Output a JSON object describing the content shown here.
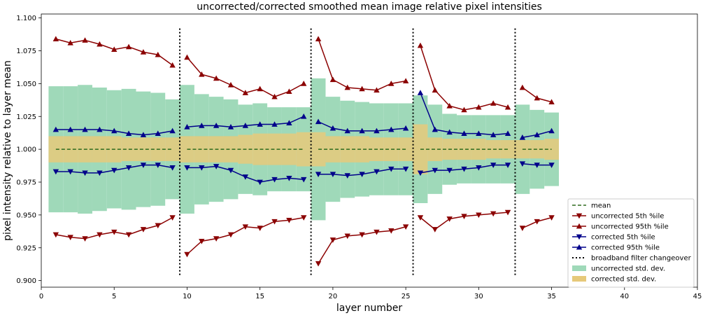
{
  "chart_data": {
    "type": "line",
    "title": "uncorrected/corrected smoothed mean image relative pixel intensities",
    "xlabel": "layer number",
    "ylabel": "pixel intensity relative to layer mean",
    "xlim": [
      0,
      45
    ],
    "ylim": [
      0.895,
      1.103
    ],
    "xticks": [
      0,
      5,
      10,
      15,
      20,
      25,
      30,
      35,
      40,
      45
    ],
    "yticks": [
      0.9,
      0.925,
      0.95,
      0.975,
      1.0,
      1.025,
      1.05,
      1.075,
      1.1
    ],
    "ytick_labels": [
      "0.900",
      "0.925",
      "0.950",
      "0.975",
      "1.000",
      "1.025",
      "1.050",
      "1.075",
      "1.100"
    ],
    "grid": false,
    "legend_position": "bottom-right",
    "x": [
      1,
      2,
      3,
      4,
      5,
      6,
      7,
      8,
      9,
      10,
      11,
      12,
      13,
      14,
      15,
      16,
      17,
      18,
      19,
      20,
      21,
      22,
      23,
      24,
      25,
      26,
      27,
      28,
      29,
      30,
      31,
      32,
      33,
      34,
      35
    ],
    "segment_breaks": [
      9,
      18,
      25,
      32
    ],
    "changeover_lines": [
      9.5,
      18.5,
      25.5,
      32.5
    ],
    "series": [
      {
        "name": "mean",
        "color": "#2e6b1e",
        "style": "dashed",
        "values": [
          1,
          1,
          1,
          1,
          1,
          1,
          1,
          1,
          1,
          1,
          1,
          1,
          1,
          1,
          1,
          1,
          1,
          1,
          1,
          1,
          1,
          1,
          1,
          1,
          1,
          1,
          1,
          1,
          1,
          1,
          1,
          1,
          1,
          1,
          1
        ]
      },
      {
        "name": "uncorrected 5th %ile",
        "color": "#8b0000",
        "marker": "down-triangle",
        "values": [
          0.935,
          0.933,
          0.932,
          0.935,
          0.937,
          0.935,
          0.939,
          0.942,
          0.948,
          0.92,
          0.93,
          0.932,
          0.935,
          0.941,
          0.94,
          0.945,
          0.946,
          0.948,
          0.913,
          0.931,
          0.934,
          0.935,
          0.937,
          0.938,
          0.941,
          0.948,
          0.939,
          0.947,
          0.949,
          0.95,
          0.951,
          0.952,
          0.94,
          0.945,
          0.948
        ]
      },
      {
        "name": "uncorrected 95th %ile",
        "color": "#8b0000",
        "marker": "up-triangle",
        "values": [
          1.084,
          1.081,
          1.083,
          1.08,
          1.076,
          1.078,
          1.074,
          1.072,
          1.064,
          1.07,
          1.057,
          1.054,
          1.049,
          1.043,
          1.046,
          1.04,
          1.044,
          1.05,
          1.084,
          1.053,
          1.047,
          1.046,
          1.045,
          1.05,
          1.052,
          1.079,
          1.045,
          1.033,
          1.03,
          1.032,
          1.035,
          1.032,
          1.047,
          1.039,
          1.036
        ]
      },
      {
        "name": "corrected 5th %ile",
        "color": "#00008b",
        "marker": "down-triangle",
        "values": [
          0.983,
          0.983,
          0.982,
          0.982,
          0.984,
          0.986,
          0.988,
          0.988,
          0.986,
          0.986,
          0.986,
          0.987,
          0.984,
          0.979,
          0.975,
          0.977,
          0.978,
          0.977,
          0.981,
          0.981,
          0.98,
          0.981,
          0.983,
          0.985,
          0.985,
          0.982,
          0.984,
          0.984,
          0.985,
          0.986,
          0.988,
          0.988,
          0.989,
          0.988,
          0.988
        ]
      },
      {
        "name": "corrected 95th %ile",
        "color": "#00008b",
        "marker": "up-triangle",
        "values": [
          1.015,
          1.015,
          1.015,
          1.015,
          1.014,
          1.012,
          1.011,
          1.012,
          1.014,
          1.017,
          1.018,
          1.018,
          1.017,
          1.018,
          1.019,
          1.019,
          1.02,
          1.025,
          1.021,
          1.016,
          1.014,
          1.014,
          1.014,
          1.015,
          1.016,
          1.043,
          1.015,
          1.013,
          1.012,
          1.012,
          1.011,
          1.012,
          1.009,
          1.011,
          1.014
        ]
      }
    ],
    "bands": [
      {
        "name": "uncorrected std. dev.",
        "color": "#9fd9b9",
        "upper": [
          1.048,
          1.048,
          1.049,
          1.047,
          1.045,
          1.046,
          1.044,
          1.043,
          1.038,
          1.049,
          1.042,
          1.04,
          1.038,
          1.034,
          1.035,
          1.032,
          1.032,
          1.032,
          1.054,
          1.04,
          1.037,
          1.036,
          1.035,
          1.035,
          1.035,
          1.041,
          1.034,
          1.027,
          1.026,
          1.026,
          1.026,
          1.026,
          1.034,
          1.03,
          1.028
        ],
        "lower": [
          0.952,
          0.952,
          0.951,
          0.953,
          0.955,
          0.954,
          0.956,
          0.957,
          0.962,
          0.951,
          0.958,
          0.96,
          0.962,
          0.966,
          0.965,
          0.968,
          0.968,
          0.968,
          0.946,
          0.96,
          0.963,
          0.964,
          0.965,
          0.965,
          0.965,
          0.959,
          0.966,
          0.973,
          0.974,
          0.974,
          0.974,
          0.974,
          0.966,
          0.97,
          0.972
        ]
      },
      {
        "name": "corrected std. dev.",
        "color": "#e6c97a",
        "upper": [
          1.01,
          1.01,
          1.01,
          1.01,
          1.01,
          1.009,
          1.009,
          1.009,
          1.009,
          1.01,
          1.01,
          1.01,
          1.01,
          1.011,
          1.012,
          1.012,
          1.012,
          1.013,
          1.013,
          1.01,
          1.01,
          1.01,
          1.009,
          1.009,
          1.009,
          1.019,
          1.009,
          1.008,
          1.008,
          1.008,
          1.007,
          1.007,
          1.007,
          1.007,
          1.008
        ],
        "lower": [
          0.99,
          0.99,
          0.99,
          0.99,
          0.99,
          0.991,
          0.991,
          0.991,
          0.991,
          0.99,
          0.99,
          0.99,
          0.99,
          0.989,
          0.988,
          0.988,
          0.988,
          0.987,
          0.987,
          0.99,
          0.99,
          0.99,
          0.991,
          0.991,
          0.991,
          0.981,
          0.991,
          0.992,
          0.992,
          0.992,
          0.993,
          0.993,
          0.993,
          0.993,
          0.992
        ]
      }
    ],
    "legend": [
      {
        "label": "mean",
        "kind": "dashed",
        "color": "#2e6b1e"
      },
      {
        "label": "uncorrected 5th %ile",
        "kind": "line-down",
        "color": "#8b0000"
      },
      {
        "label": "uncorrected 95th %ile",
        "kind": "line-up",
        "color": "#8b0000"
      },
      {
        "label": "corrected 5th %ile",
        "kind": "line-down",
        "color": "#00008b"
      },
      {
        "label": "corrected 95th %ile",
        "kind": "line-up",
        "color": "#00008b"
      },
      {
        "label": "broadband filter changeover",
        "kind": "dotted",
        "color": "#000000"
      },
      {
        "label": "uncorrected std. dev.",
        "kind": "patch",
        "color": "#9fd9b9"
      },
      {
        "label": "corrected std. dev.",
        "kind": "patch",
        "color": "#e6c97a"
      }
    ]
  }
}
